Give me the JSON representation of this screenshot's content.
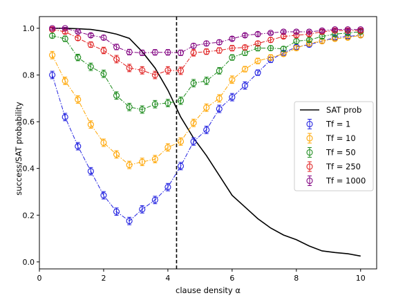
{
  "chart_data": {
    "type": "line",
    "xlabel": "clause density α",
    "ylabel": "success/SAT probability",
    "xlim": [
      0,
      10.5
    ],
    "ylim": [
      -0.03,
      1.05
    ],
    "x_ticks": [
      0,
      2,
      4,
      6,
      8,
      10
    ],
    "y_ticks": [
      0.0,
      0.2,
      0.4,
      0.6,
      0.8,
      1.0
    ],
    "y_tick_labels": [
      "0.0",
      "0.2",
      "0.4",
      "0.6",
      "0.8",
      "1.0"
    ],
    "grid": false,
    "legend_position": "center-right",
    "threshold_line": {
      "x": 4.27,
      "style": "dashed",
      "color": "#000000"
    },
    "sat_prob": {
      "name": "SAT prob",
      "color": "#000000",
      "x": [
        0.4,
        0.8,
        1.2,
        1.6,
        2.0,
        2.4,
        2.8,
        3.2,
        3.6,
        4.0,
        4.4,
        4.8,
        5.2,
        5.6,
        6.0,
        6.4,
        6.8,
        7.2,
        7.6,
        8.0,
        8.4,
        8.8,
        9.2,
        9.6,
        10.0
      ],
      "y": [
        1.0,
        1.0,
        0.998,
        0.995,
        0.987,
        0.975,
        0.957,
        0.9,
        0.83,
        0.735,
        0.62,
        0.53,
        0.455,
        0.37,
        0.285,
        0.235,
        0.185,
        0.145,
        0.115,
        0.095,
        0.068,
        0.047,
        0.04,
        0.035,
        0.025
      ]
    },
    "x": [
      0.4,
      0.8,
      1.2,
      1.6,
      2.0,
      2.4,
      2.8,
      3.2,
      3.6,
      4.0,
      4.4,
      4.8,
      5.2,
      5.6,
      6.0,
      6.4,
      6.8,
      7.2,
      7.6,
      8.0,
      8.4,
      8.8,
      9.2,
      9.6,
      10.0
    ],
    "series": [
      {
        "name": "Tf = 1",
        "color": "#1f1fe0",
        "values": [
          0.8,
          0.62,
          0.495,
          0.388,
          0.285,
          0.215,
          0.175,
          0.225,
          0.265,
          0.32,
          0.41,
          0.515,
          0.565,
          0.655,
          0.705,
          0.755,
          0.81,
          0.865,
          0.895,
          0.92,
          0.93,
          0.945,
          0.96,
          0.965,
          0.97
        ],
        "errors": [
          0.016,
          0.016,
          0.016,
          0.016,
          0.016,
          0.016,
          0.016,
          0.016,
          0.016,
          0.016,
          0.016,
          0.016,
          0.016,
          0.016,
          0.016,
          0.016,
          0.012,
          0.012,
          0.01,
          0.01,
          0.01,
          0.008,
          0.008,
          0.008,
          0.008
        ]
      },
      {
        "name": "Tf = 10",
        "color": "#ffa500",
        "values": [
          0.885,
          0.775,
          0.695,
          0.588,
          0.51,
          0.46,
          0.415,
          0.428,
          0.44,
          0.49,
          0.515,
          0.595,
          0.66,
          0.7,
          0.78,
          0.825,
          0.86,
          0.875,
          0.89,
          0.915,
          0.935,
          0.945,
          0.955,
          0.96,
          0.97
        ],
        "errors": [
          0.016,
          0.016,
          0.016,
          0.016,
          0.016,
          0.016,
          0.016,
          0.016,
          0.016,
          0.016,
          0.016,
          0.016,
          0.016,
          0.016,
          0.016,
          0.012,
          0.012,
          0.012,
          0.01,
          0.01,
          0.01,
          0.008,
          0.008,
          0.008,
          0.008
        ]
      },
      {
        "name": "Tf = 50",
        "color": "#1a8a1a",
        "values": [
          0.968,
          0.955,
          0.875,
          0.835,
          0.805,
          0.712,
          0.663,
          0.652,
          0.675,
          0.68,
          0.69,
          0.765,
          0.775,
          0.818,
          0.875,
          0.895,
          0.915,
          0.915,
          0.912,
          0.945,
          0.95,
          0.965,
          0.975,
          0.98,
          0.985
        ],
        "errors": [
          0.01,
          0.012,
          0.014,
          0.016,
          0.016,
          0.016,
          0.016,
          0.016,
          0.016,
          0.016,
          0.016,
          0.016,
          0.016,
          0.014,
          0.012,
          0.012,
          0.012,
          0.01,
          0.01,
          0.01,
          0.008,
          0.008,
          0.008,
          0.008,
          0.008
        ]
      },
      {
        "name": "Tf = 250",
        "color": "#e01f1f",
        "values": [
          0.995,
          0.985,
          0.958,
          0.93,
          0.905,
          0.868,
          0.83,
          0.82,
          0.8,
          0.82,
          0.818,
          0.895,
          0.9,
          0.905,
          0.915,
          0.918,
          0.935,
          0.95,
          0.965,
          0.97,
          0.975,
          0.985,
          0.99,
          0.99,
          0.99
        ],
        "errors": [
          0.006,
          0.008,
          0.01,
          0.012,
          0.014,
          0.016,
          0.016,
          0.016,
          0.016,
          0.016,
          0.016,
          0.014,
          0.012,
          0.012,
          0.012,
          0.01,
          0.01,
          0.01,
          0.008,
          0.008,
          0.008,
          0.008,
          0.006,
          0.006,
          0.006
        ]
      },
      {
        "name": "Tf = 1000",
        "color": "#800080",
        "values": [
          1.0,
          1.0,
          0.985,
          0.97,
          0.96,
          0.92,
          0.898,
          0.895,
          0.897,
          0.897,
          0.895,
          0.925,
          0.935,
          0.94,
          0.955,
          0.97,
          0.975,
          0.98,
          0.985,
          0.985,
          0.985,
          0.99,
          0.995,
          0.995,
          0.995
        ],
        "errors": [
          0.004,
          0.004,
          0.006,
          0.008,
          0.01,
          0.012,
          0.012,
          0.012,
          0.012,
          0.012,
          0.012,
          0.01,
          0.01,
          0.01,
          0.008,
          0.008,
          0.008,
          0.006,
          0.006,
          0.006,
          0.006,
          0.006,
          0.004,
          0.004,
          0.004
        ]
      }
    ]
  }
}
